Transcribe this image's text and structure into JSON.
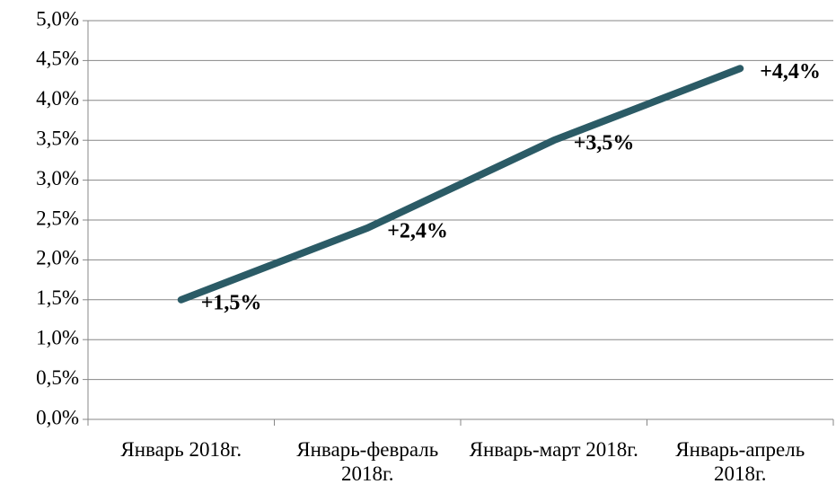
{
  "chart_data": {
    "type": "line",
    "categories": [
      "Январь 2018г.",
      "Январь-февраль 2018г.",
      "Январь-март 2018г.",
      "Январь-апрель 2018г."
    ],
    "series": [
      {
        "color": "#2b5b66",
        "values": [
          1.5,
          2.4,
          3.5,
          4.4
        ],
        "value_labels": [
          "+1,5%",
          "+2,4%",
          "+3,5%",
          "+4,4%"
        ]
      }
    ],
    "ylim": [
      0,
      5
    ],
    "yticks": [
      {
        "value": 0,
        "label": "0,0%"
      },
      {
        "value": 0.5,
        "label": "0,5%"
      },
      {
        "value": 1,
        "label": "1,0%"
      },
      {
        "value": 1.5,
        "label": "1,5%"
      },
      {
        "value": 2,
        "label": "2,0%"
      },
      {
        "value": 2.5,
        "label": "2,5%"
      },
      {
        "value": 3,
        "label": "3,0%"
      },
      {
        "value": 3.5,
        "label": "3,5%"
      },
      {
        "value": 4,
        "label": "4,0%"
      },
      {
        "value": 4.5,
        "label": "4,5%"
      },
      {
        "value": 5,
        "label": "5,0%"
      }
    ],
    "grid": true
  }
}
